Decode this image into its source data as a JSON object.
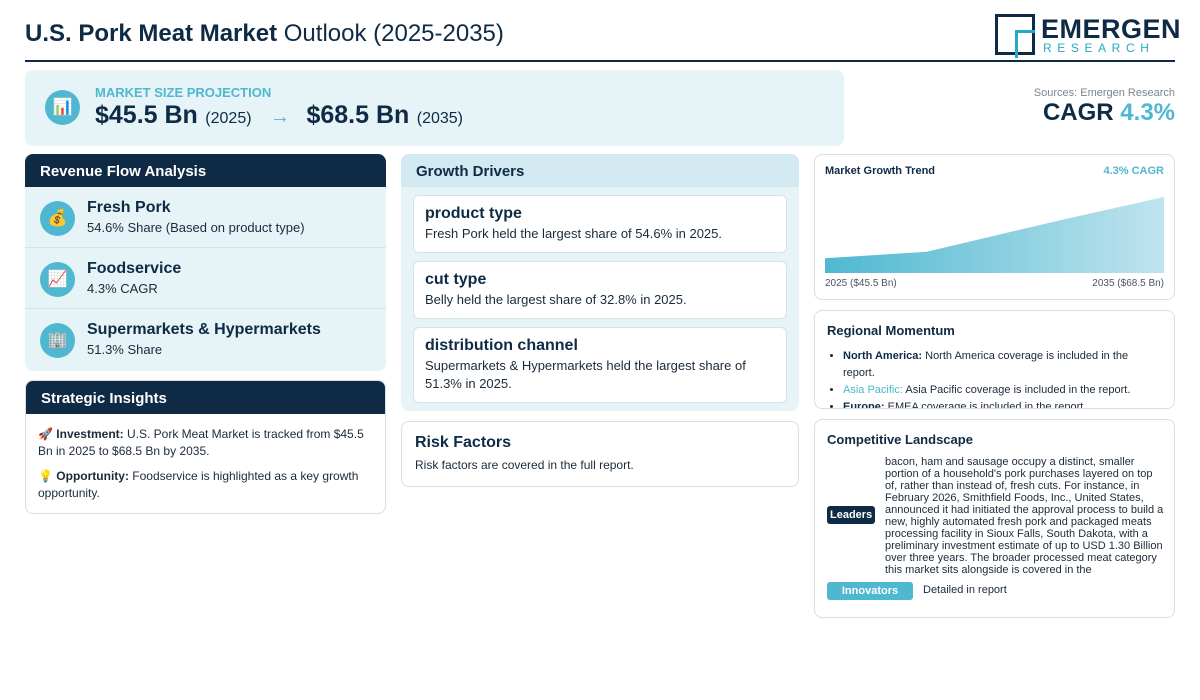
{
  "header": {
    "title_bold": "U.S. Pork Meat Market",
    "title_rest": " Outlook (2025-2035)",
    "logo_main": "EMERGEN",
    "logo_sub": "RESEARCH"
  },
  "projection": {
    "label": "MARKET SIZE PROJECTION",
    "icon": "bar-chart-icon",
    "start_value": "$45.5 Bn",
    "start_year": "(2025)",
    "arrow": "→",
    "end_value": "$68.5 Bn",
    "end_year": "(2035)"
  },
  "summary": {
    "sources": "Sources: Emergen Research",
    "cagr_label": "CAGR",
    "cagr_value": "4.3%"
  },
  "revenue_flow": {
    "heading": "Revenue Flow Analysis",
    "items": [
      {
        "icon": "money-bag-icon",
        "glyph": "💰",
        "name": "Fresh Pork",
        "desc": "54.6% Share (Based on product type)"
      },
      {
        "icon": "chart-increasing-icon",
        "glyph": "📈",
        "name": "Foodservice",
        "desc": "4.3% CAGR"
      },
      {
        "icon": "building-icon",
        "glyph": "🏢",
        "name": "Supermarkets & Hypermarkets",
        "desc": "51.3% Share"
      }
    ]
  },
  "strategic": {
    "heading": "Strategic Insights",
    "investment_icon": "🚀",
    "investment_label": "Investment:",
    "investment_text": " U.S. Pork Meat Market is tracked from $45.5 Bn in 2025 to $68.5 Bn by 2035.",
    "opportunity_icon": "💡",
    "opportunity_label": "Opportunity:",
    "opportunity_text": " Foodservice is highlighted as a key growth opportunity."
  },
  "growth_drivers": {
    "heading": "Growth Drivers",
    "items": [
      {
        "title": "product type",
        "desc": "Fresh Pork held the largest share of 54.6% in 2025."
      },
      {
        "title": "cut type",
        "desc": "Belly held the largest share of 32.8% in 2025."
      },
      {
        "title": "distribution channel",
        "desc": "Supermarkets & Hypermarkets held the largest share of 51.3% in 2025."
      }
    ]
  },
  "risk": {
    "heading": "Risk Factors",
    "desc": "Risk factors are covered in the full report."
  },
  "trend": {
    "heading": "Market Growth Trend",
    "cagr_label": "4.3% CAGR",
    "start_label": "2025 ($45.5 Bn)",
    "end_label": "2035 ($68.5 Bn)",
    "fill_color": "#4fb8d0"
  },
  "chart_data": {
    "type": "area",
    "x": [
      2025,
      2028,
      2032,
      2035
    ],
    "values": [
      45.5,
      48.0,
      60.0,
      68.5
    ],
    "title": "Market Growth Trend",
    "xlabel": "",
    "ylabel": ""
  },
  "regional": {
    "heading": "Regional Momentum",
    "items": [
      {
        "region": "North America:",
        "text": " North America coverage is included in the report."
      },
      {
        "region": "Asia Pacific:",
        "text": " Asia Pacific coverage is included in the report."
      },
      {
        "region": "Europe:",
        "text": " EMEA coverage is included in the report."
      }
    ]
  },
  "competitive": {
    "heading": "Competitive Landscape",
    "leaders_label": "Leaders",
    "leaders_text": "bacon, ham and sausage occupy a distinct, smaller portion of a household's pork purchases layered on top of, rather than instead of, fresh cuts. For instance, in February 2026, Smithfield Foods, Inc., United States, announced it had initiated the approval process to build a new, highly automated fresh pork and packaged meats processing facility in Sioux Falls, South Dakota, with a preliminary investment estimate of up to USD 1.30 Billion over three years. The broader processed meat category this market sits alongside is covered in the",
    "innovators_label": "Innovators",
    "innovators_text": "Detailed in report"
  }
}
